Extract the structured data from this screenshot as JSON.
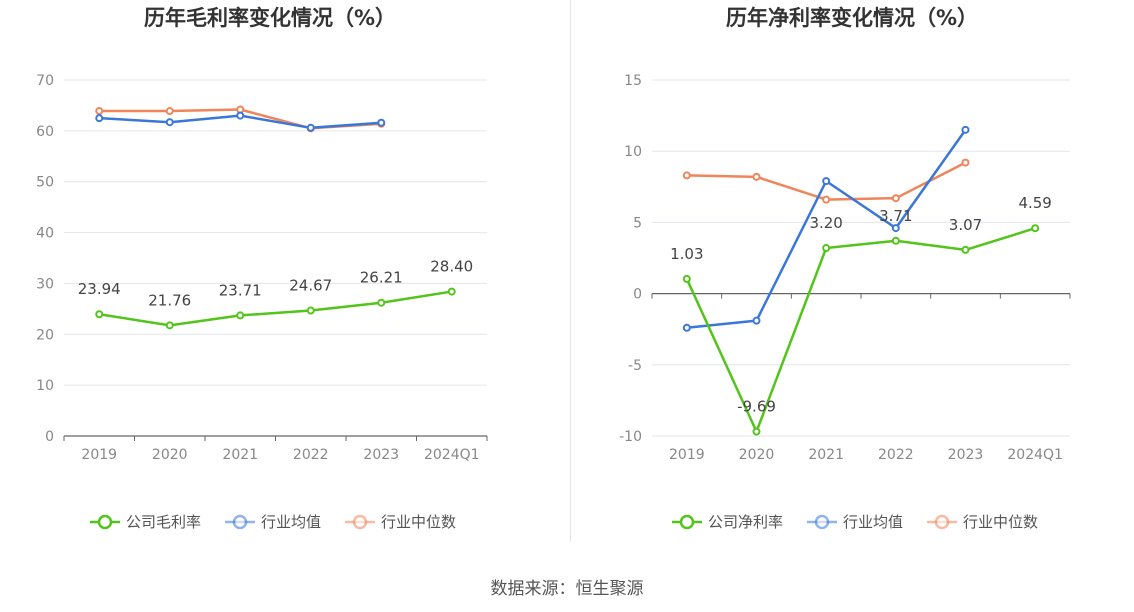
{
  "source_label": "数据来源：恒生聚源",
  "chart_data": [
    {
      "type": "line",
      "title": "历年毛利率变化情况（%）",
      "categories": [
        "2019",
        "2020",
        "2021",
        "2022",
        "2023",
        "2024Q1"
      ],
      "ylim": [
        0,
        70
      ],
      "yticks": [
        0,
        10,
        20,
        30,
        40,
        50,
        60,
        70
      ],
      "grid": true,
      "legend_position": "bottom",
      "series": [
        {
          "name": "公司毛利率",
          "color": "#52c41a",
          "values": [
            23.94,
            21.76,
            23.71,
            24.67,
            26.21,
            28.4
          ],
          "labels": [
            "23.94",
            "21.76",
            "23.71",
            "24.67",
            "26.21",
            "28.40"
          ]
        },
        {
          "name": "行业均值",
          "color": "#3a77d8",
          "values": [
            62.5,
            61.7,
            63.0,
            60.6,
            61.6,
            null
          ]
        },
        {
          "name": "行业中位数",
          "color": "#f0845a",
          "values": [
            63.9,
            63.9,
            64.2,
            60.5,
            61.4,
            null
          ]
        }
      ]
    },
    {
      "type": "line",
      "title": "历年净利率变化情况（%）",
      "categories": [
        "2019",
        "2020",
        "2021",
        "2022",
        "2023",
        "2024Q1"
      ],
      "ylim": [
        -10,
        15
      ],
      "yticks": [
        -10,
        -5,
        0,
        5,
        10,
        15
      ],
      "grid": true,
      "legend_position": "bottom",
      "series": [
        {
          "name": "公司净利率",
          "color": "#52c41a",
          "values": [
            1.03,
            -9.69,
            3.2,
            3.71,
            3.07,
            4.59
          ],
          "labels": [
            "1.03",
            "-9.69",
            "3.20",
            "3.71",
            "3.07",
            "4.59"
          ]
        },
        {
          "name": "行业均值",
          "color": "#3a77d8",
          "values": [
            -2.4,
            -1.9,
            7.9,
            4.6,
            11.5,
            null
          ]
        },
        {
          "name": "行业中位数",
          "color": "#f0845a",
          "values": [
            8.3,
            8.2,
            6.6,
            6.7,
            9.2,
            null
          ]
        }
      ]
    }
  ]
}
